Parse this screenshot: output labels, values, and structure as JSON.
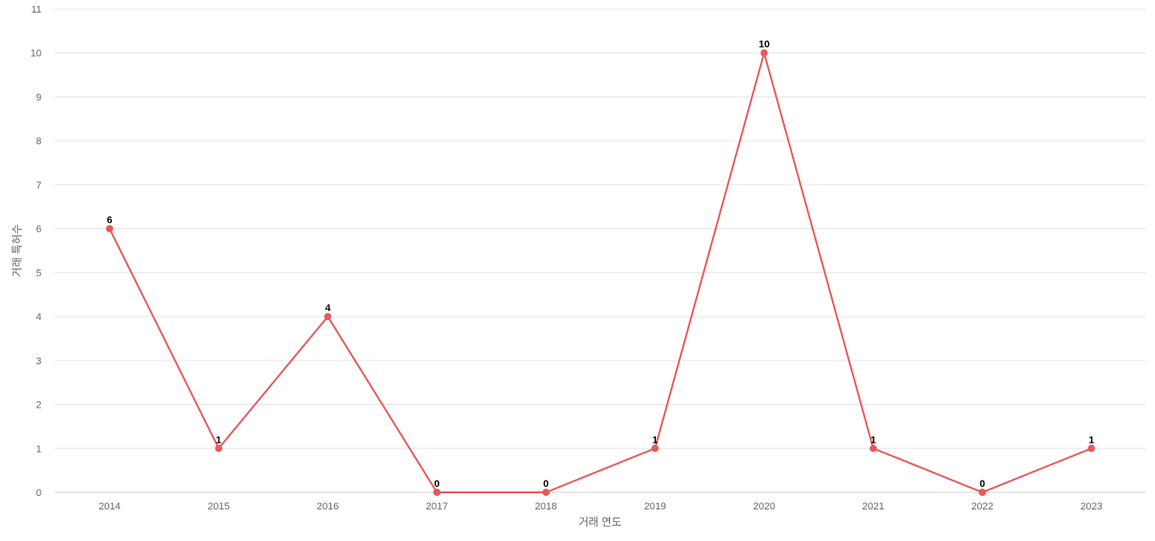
{
  "chart_data": {
    "type": "line",
    "categories": [
      "2014",
      "2015",
      "2016",
      "2017",
      "2018",
      "2019",
      "2020",
      "2021",
      "2022",
      "2023"
    ],
    "values": [
      6,
      1,
      4,
      0,
      0,
      1,
      10,
      1,
      0,
      1
    ],
    "xlabel": "거래 연도",
    "ylabel": "거래 특허수",
    "ylim": [
      0,
      11
    ],
    "yticks": [
      0,
      1,
      2,
      3,
      4,
      5,
      6,
      7,
      8,
      9,
      10,
      11
    ],
    "grid": true,
    "data_labels": true,
    "line_color": "#e8585a"
  }
}
